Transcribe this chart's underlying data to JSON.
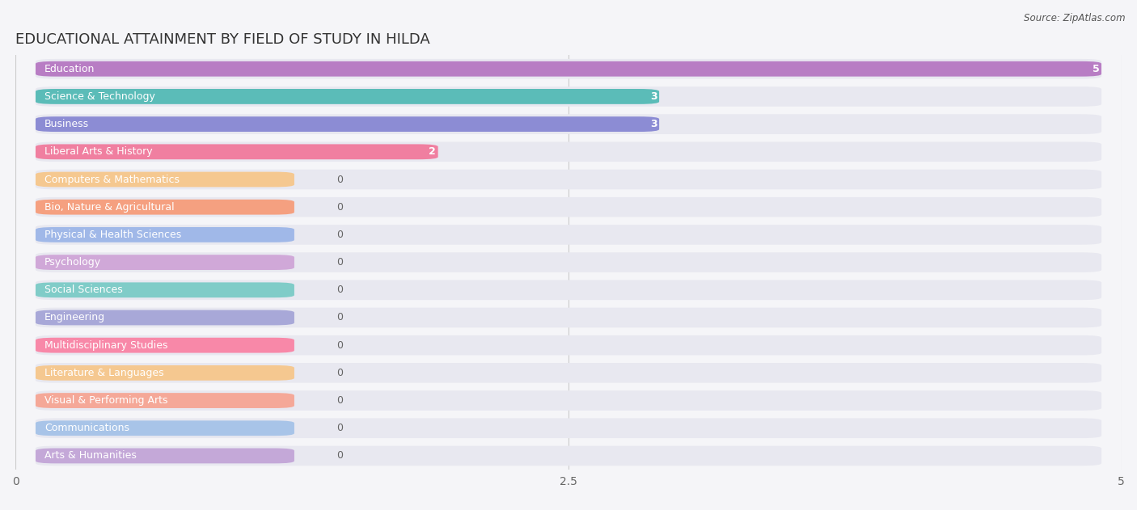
{
  "title": "EDUCATIONAL ATTAINMENT BY FIELD OF STUDY IN HILDA",
  "source": "Source: ZipAtlas.com",
  "categories": [
    "Education",
    "Science & Technology",
    "Business",
    "Liberal Arts & History",
    "Computers & Mathematics",
    "Bio, Nature & Agricultural",
    "Physical & Health Sciences",
    "Psychology",
    "Social Sciences",
    "Engineering",
    "Multidisciplinary Studies",
    "Literature & Languages",
    "Visual & Performing Arts",
    "Communications",
    "Arts & Humanities"
  ],
  "values": [
    5,
    3,
    3,
    2,
    0,
    0,
    0,
    0,
    0,
    0,
    0,
    0,
    0,
    0,
    0
  ],
  "bar_colors": [
    "#b87dc4",
    "#5bbcb8",
    "#8c8cd4",
    "#f07fa0",
    "#f5c890",
    "#f5a080",
    "#a0b8e8",
    "#d0a8d8",
    "#80ccc8",
    "#a8a8d8",
    "#f888a8",
    "#f5c890",
    "#f5a898",
    "#a8c4e8",
    "#c4a8d8"
  ],
  "xlim": [
    0,
    5
  ],
  "xticks": [
    0,
    2.5,
    5
  ],
  "background_color": "#f5f5f8",
  "bar_background_color": "#e8e8f0",
  "title_fontsize": 13,
  "label_fontsize": 9,
  "value_fontsize": 9
}
